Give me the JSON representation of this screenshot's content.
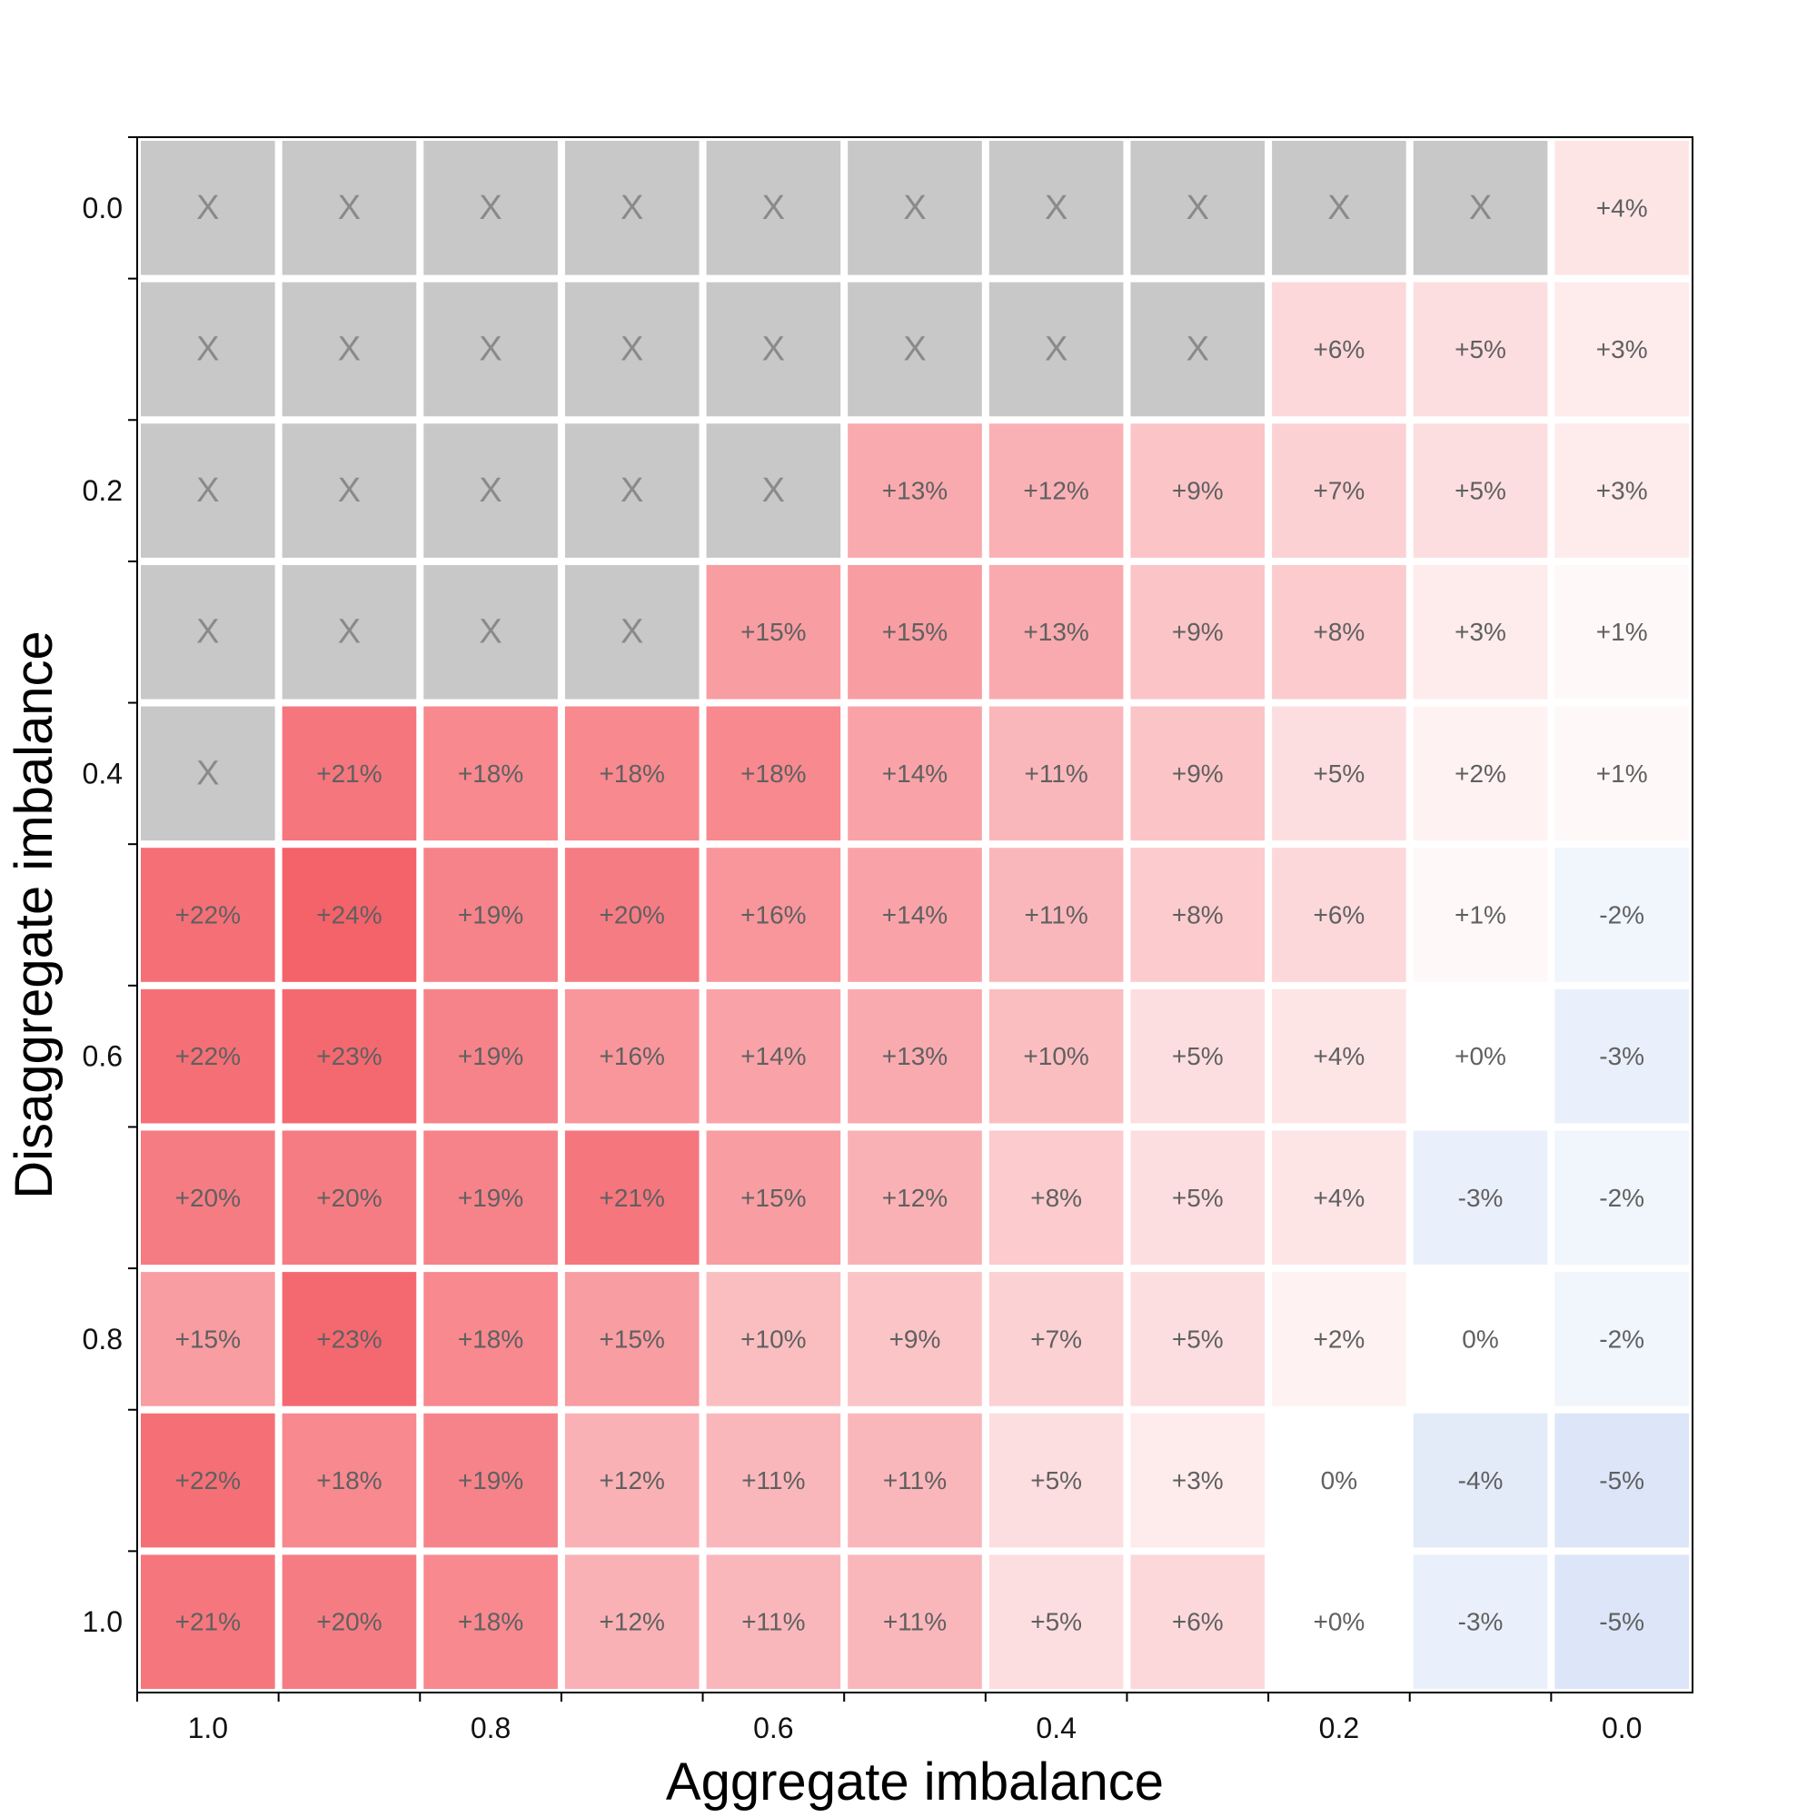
{
  "chart_data": {
    "type": "heatmap",
    "xlabel": "Aggregate imbalance",
    "ylabel": "Disaggregate imbalance",
    "x_values": [
      1.0,
      0.9,
      0.8,
      0.7,
      0.6,
      0.5,
      0.4,
      0.3,
      0.2,
      0.1,
      0.0
    ],
    "y_values": [
      0.0,
      0.1,
      0.2,
      0.3,
      0.4,
      0.5,
      0.6,
      0.7,
      0.8,
      0.9,
      1.0
    ],
    "x_tick_labels": [
      "1.0",
      "",
      "0.8",
      "",
      "0.6",
      "",
      "0.4",
      "",
      "0.2",
      "",
      "0.0"
    ],
    "y_tick_labels": [
      "0.0",
      "",
      "0.2",
      "",
      "0.4",
      "",
      "0.6",
      "",
      "0.8",
      "",
      "1.0"
    ],
    "invalid_label": "X",
    "cells": [
      [
        "X",
        "X",
        "X",
        "X",
        "X",
        "X",
        "X",
        "X",
        "X",
        "X",
        "+4%"
      ],
      [
        "X",
        "X",
        "X",
        "X",
        "X",
        "X",
        "X",
        "X",
        "+6%",
        "+5%",
        "+3%"
      ],
      [
        "X",
        "X",
        "X",
        "X",
        "X",
        "+13%",
        "+12%",
        "+9%",
        "+7%",
        "+5%",
        "+3%"
      ],
      [
        "X",
        "X",
        "X",
        "X",
        "+15%",
        "+15%",
        "+13%",
        "+9%",
        "+8%",
        "+3%",
        "+1%"
      ],
      [
        "X",
        "+21%",
        "+18%",
        "+18%",
        "+18%",
        "+14%",
        "+11%",
        "+9%",
        "+5%",
        "+2%",
        "+1%"
      ],
      [
        "+22%",
        "+24%",
        "+19%",
        "+20%",
        "+16%",
        "+14%",
        "+11%",
        "+8%",
        "+6%",
        "+1%",
        "-2%"
      ],
      [
        "+22%",
        "+23%",
        "+19%",
        "+16%",
        "+14%",
        "+13%",
        "+10%",
        "+5%",
        "+4%",
        "+0%",
        "-3%"
      ],
      [
        "+20%",
        "+20%",
        "+19%",
        "+21%",
        "+15%",
        "+12%",
        "+8%",
        "+5%",
        "+4%",
        "-3%",
        "-2%"
      ],
      [
        "+15%",
        "+23%",
        "+18%",
        "+15%",
        "+10%",
        "+9%",
        "+7%",
        "+5%",
        "+2%",
        "0%",
        "-2%"
      ],
      [
        "+22%",
        "+18%",
        "+19%",
        "+12%",
        "+11%",
        "+11%",
        "+5%",
        "+3%",
        "0%",
        "-4%",
        "-5%"
      ],
      [
        "+21%",
        "+20%",
        "+18%",
        "+12%",
        "+11%",
        "+11%",
        "+5%",
        "+6%",
        "+0%",
        "-3%",
        "-5%"
      ]
    ],
    "colors": {
      "invalid": "#c8c8c8",
      "positive_max": "#f4626a",
      "negative_max": "#dce6f8",
      "neutral": "#ffffff"
    }
  }
}
